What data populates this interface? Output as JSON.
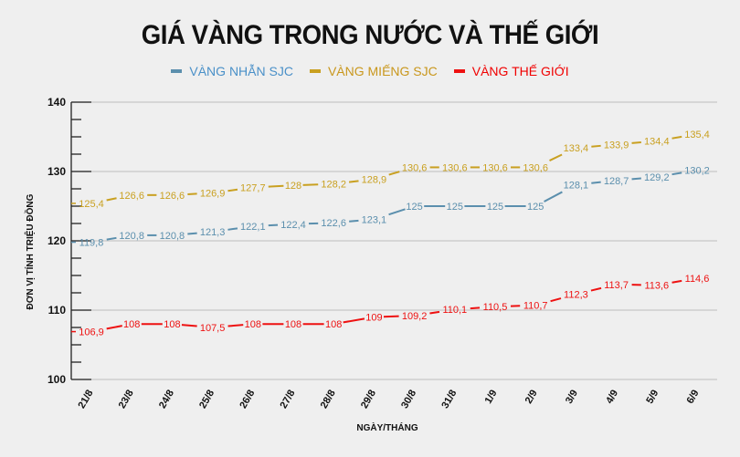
{
  "header": {
    "title": "GIÁ VÀNG TRONG NƯỚC VÀ THẾ GIỚI"
  },
  "legend": [
    {
      "label": "VÀNG NHẪN SJC",
      "color": "#4a90c8",
      "line_color": "#5b8fad"
    },
    {
      "label": "VÀNG MIẾNG SJC",
      "color": "#c9971c",
      "line_color": "#c9a020"
    },
    {
      "label": "VÀNG THẾ GIỚI",
      "color": "#f00000",
      "line_color": "#ee1111"
    }
  ],
  "axes": {
    "ylabel": "ĐƠN VỊ TÍNH TRIỆU ĐỒNG",
    "xlabel": "NGÀY/THÁNG"
  },
  "chart_data": {
    "type": "line",
    "title": "GIÁ VÀNG TRONG NƯỚC VÀ THẾ GIỚI",
    "xlabel": "NGÀY/THÁNG",
    "ylabel": "ĐƠN VỊ TÍNH TRIỆU ĐỒNG",
    "ylim": [
      100,
      140
    ],
    "yticks": [
      100,
      110,
      120,
      130,
      140
    ],
    "grid": true,
    "legend_position": "top",
    "categories": [
      "21/8",
      "23/8",
      "24/8",
      "25/8",
      "26/8",
      "27/8",
      "28/8",
      "29/8",
      "30/8",
      "31/8",
      "1/9",
      "2/9",
      "3/9",
      "4/9",
      "5/9",
      "6/9"
    ],
    "series": [
      {
        "name": "VÀNG NHẪN SJC",
        "color": "#5b8fad",
        "values": [
          119.8,
          120.8,
          120.8,
          121.3,
          122.1,
          122.4,
          122.6,
          123.1,
          125,
          125,
          125,
          125,
          128.1,
          128.7,
          129.2,
          130.2
        ],
        "labels": [
          "119,8",
          "120,8",
          "120,8",
          "121,3",
          "122,1",
          "122,4",
          "122,6",
          "123,1",
          "125",
          "125",
          "125",
          "125",
          "128,1",
          "128,7",
          "129,2",
          "130,2"
        ]
      },
      {
        "name": "VÀNG MIẾNG SJC",
        "color": "#c9a020",
        "values": [
          125.4,
          126.6,
          126.6,
          126.9,
          127.7,
          128,
          128.2,
          128.9,
          130.6,
          130.6,
          130.6,
          130.6,
          133.4,
          133.9,
          134.4,
          135.4
        ],
        "labels": [
          "125,4",
          "126,6",
          "126,6",
          "126,9",
          "127,7",
          "128",
          "128,2",
          "128,9",
          "130,6",
          "130,6",
          "130,6",
          "130,6",
          "133,4",
          "133,9",
          "134,4",
          "135,4"
        ]
      },
      {
        "name": "VÀNG THẾ GIỚI",
        "color": "#ee1111",
        "values": [
          106.9,
          108,
          108,
          107.5,
          108,
          108,
          108,
          109,
          109.2,
          110.1,
          110.5,
          110.7,
          112.3,
          113.7,
          113.6,
          114.6
        ],
        "labels": [
          "106,9",
          "108",
          "108",
          "107,5",
          "108",
          "108",
          "108",
          "109",
          "109,2",
          "110,1",
          "110,5",
          "110,7",
          "112,3",
          "113,7",
          "113,6",
          "114,6"
        ]
      }
    ]
  }
}
